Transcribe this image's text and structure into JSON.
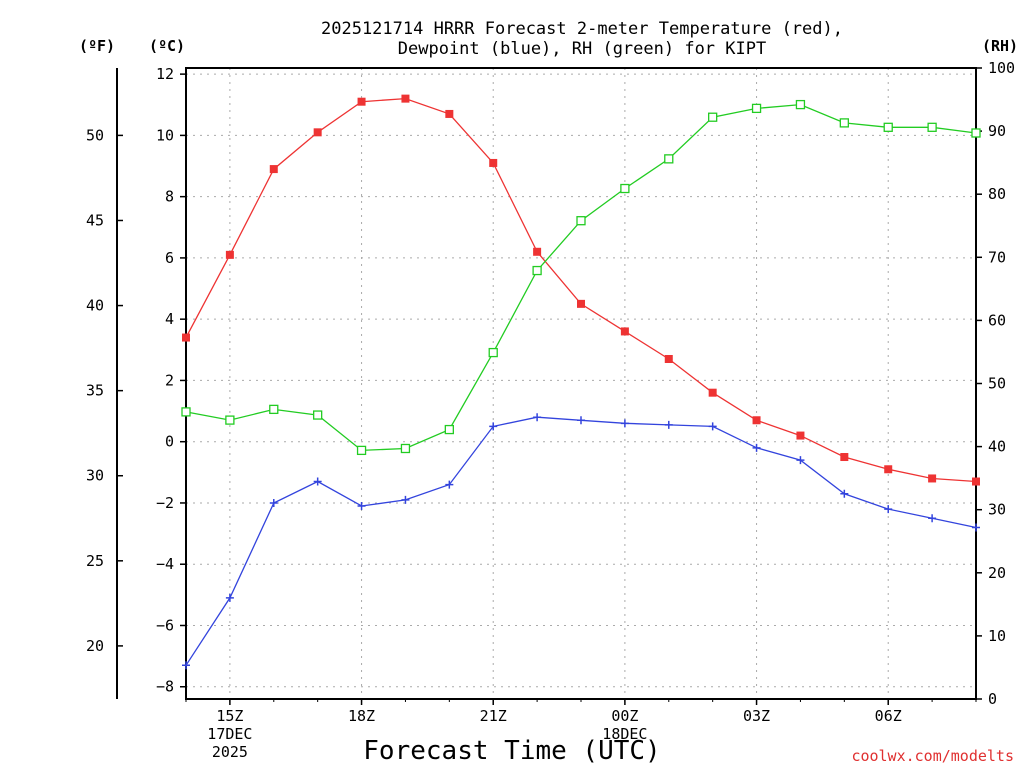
{
  "chart_data": {
    "type": "line",
    "title_line1": "2025121714 HRRR Forecast 2-meter Temperature (red),",
    "title_line2": "Dewpoint (blue), RH (green) for KIPT",
    "xlabel": "Forecast Time (UTC)",
    "credit": "coolwx.com/modelts",
    "colors": {
      "temperature": "#ee3333",
      "dewpoint": "#3344dd",
      "rh": "#22cc22"
    },
    "hours": [
      14,
      15,
      16,
      17,
      18,
      19,
      20,
      21,
      22,
      23,
      24,
      25,
      26,
      27,
      28,
      29,
      30,
      31,
      32
    ],
    "x_ticks": [
      {
        "hour": 15,
        "lines": [
          "15Z",
          "17DEC",
          "2025"
        ]
      },
      {
        "hour": 18,
        "lines": [
          "18Z"
        ]
      },
      {
        "hour": 21,
        "lines": [
          "21Z"
        ]
      },
      {
        "hour": 24,
        "lines": [
          "00Z",
          "18DEC"
        ]
      },
      {
        "hour": 27,
        "lines": [
          "03Z"
        ]
      },
      {
        "hour": 30,
        "lines": [
          "06Z"
        ]
      }
    ],
    "axes": {
      "celsius": {
        "unit_label": "(ºC)",
        "range": [
          -8.4,
          12.2
        ],
        "ticks": [
          "12",
          "10",
          "8",
          "6",
          "4",
          "2",
          "0",
          "−2",
          "−4",
          "−6",
          "−8"
        ],
        "tick_values": [
          12,
          10,
          8,
          6,
          4,
          2,
          0,
          -2,
          -4,
          -6,
          -8
        ]
      },
      "fahrenheit": {
        "unit_label": "(ºF)",
        "ticks": [
          "50",
          "45",
          "40",
          "35",
          "30",
          "25",
          "20"
        ],
        "tick_values": [
          50,
          45,
          40,
          35,
          30,
          25,
          20
        ]
      },
      "rh": {
        "unit_label": "(RH)",
        "range": [
          0,
          100
        ],
        "ticks": [
          "100",
          "90",
          "80",
          "70",
          "60",
          "50",
          "40",
          "30",
          "20",
          "10",
          "0"
        ],
        "tick_values": [
          100,
          90,
          80,
          70,
          60,
          50,
          40,
          30,
          20,
          10,
          0
        ]
      }
    },
    "series": [
      {
        "name": "Temperature",
        "axis": "celsius",
        "marker": "filled-square",
        "values": [
          3.4,
          6.1,
          8.9,
          10.1,
          11.1,
          11.2,
          10.7,
          9.1,
          6.2,
          4.5,
          3.6,
          2.7,
          1.6,
          0.7,
          0.2,
          -0.5,
          -0.9,
          -1.2,
          -1.3
        ]
      },
      {
        "name": "Dewpoint",
        "axis": "celsius",
        "marker": "plus",
        "values": [
          -7.3,
          -5.1,
          -2.0,
          -1.3,
          -2.1,
          -1.9,
          -1.4,
          0.5,
          0.8,
          0.7,
          0.6,
          0.55,
          0.5,
          -0.2,
          -0.6,
          -1.7,
          -2.2,
          -2.5,
          -2.8
        ]
      },
      {
        "name": "RH",
        "axis": "rh",
        "marker": "open-square",
        "values": [
          45.5,
          44.2,
          45.9,
          45.0,
          39.4,
          39.7,
          42.7,
          54.9,
          67.9,
          75.8,
          80.9,
          85.6,
          92.2,
          93.6,
          94.2,
          91.3,
          90.6,
          90.6,
          89.7
        ]
      }
    ]
  }
}
